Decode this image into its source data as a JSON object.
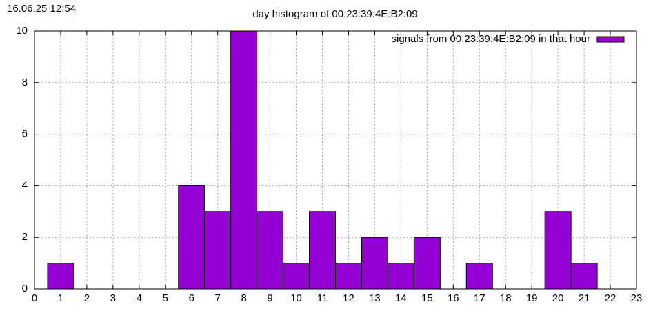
{
  "chart_data": {
    "type": "bar",
    "title": "day histogram of 00:23:39:4E:B2:09",
    "annotations": [
      "16.06.25 12:54"
    ],
    "x": [
      1,
      6,
      7,
      8,
      9,
      10,
      11,
      12,
      13,
      14,
      15,
      17,
      20,
      21
    ],
    "series": [
      {
        "name": "signals from 00:23:39:4E:B2:09 in that hour",
        "color": "#9400d3",
        "values": [
          1,
          4,
          3,
          10,
          3,
          1,
          3,
          1,
          2,
          1,
          2,
          1,
          3,
          1
        ]
      }
    ],
    "xlim": [
      0,
      23
    ],
    "xticks": [
      0,
      1,
      2,
      3,
      4,
      5,
      6,
      7,
      8,
      9,
      10,
      11,
      12,
      13,
      14,
      15,
      16,
      17,
      18,
      19,
      20,
      21,
      22,
      23
    ],
    "ylim": [
      0,
      10
    ],
    "yticks": [
      0,
      2,
      4,
      6,
      8,
      10
    ],
    "grid": true,
    "legend": "top-right"
  }
}
